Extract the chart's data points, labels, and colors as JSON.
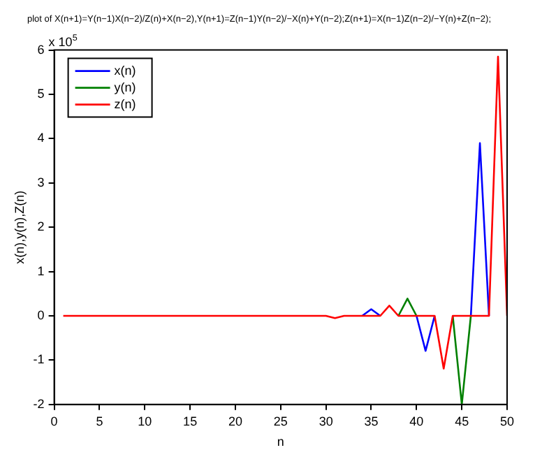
{
  "chart_data": {
    "type": "line",
    "title": "plot of X(n+1)=Y(n−1)X(n−2)/Z(n)+X(n−2),Y(n+1)=Z(n−1)Y(n−2)/−X(n)+Y(n−2);Z(n+1)=X(n−1)Z(n−2)/−Y(n)+Z(n−2);",
    "xlabel": "n",
    "ylabel": "x(n),y(n),Z(n)",
    "annotations": [
      "x 10$^{5}$"
    ],
    "x": [
      1,
      2,
      3,
      4,
      5,
      6,
      7,
      8,
      9,
      10,
      11,
      12,
      13,
      14,
      15,
      16,
      17,
      18,
      19,
      20,
      21,
      22,
      23,
      24,
      25,
      26,
      27,
      28,
      29,
      30,
      31,
      32,
      33,
      34,
      35,
      36,
      37,
      38,
      39,
      40,
      41,
      42,
      43,
      44,
      45,
      46,
      47,
      48,
      49,
      50
    ],
    "series": [
      {
        "name": "x(n)",
        "color": "#0000ff",
        "values": [
          null,
          null,
          null,
          null,
          null,
          null,
          null,
          null,
          null,
          null,
          null,
          null,
          null,
          null,
          null,
          null,
          null,
          null,
          null,
          null,
          null,
          null,
          null,
          null,
          null,
          null,
          null,
          null,
          null,
          null,
          null,
          null,
          null,
          0,
          0.15,
          0,
          null,
          null,
          null,
          0,
          -0.79,
          0,
          null,
          null,
          null,
          0,
          3.9,
          0,
          null,
          null
        ]
      },
      {
        "name": "y(n)",
        "color": "#008000",
        "values": [
          null,
          null,
          null,
          null,
          null,
          null,
          null,
          null,
          null,
          null,
          null,
          null,
          null,
          null,
          null,
          null,
          null,
          null,
          null,
          null,
          null,
          null,
          null,
          null,
          null,
          null,
          null,
          null,
          null,
          null,
          null,
          null,
          null,
          null,
          null,
          null,
          null,
          0,
          0.39,
          0,
          null,
          null,
          null,
          0,
          -2,
          0,
          null,
          null,
          null,
          null
        ]
      },
      {
        "name": "z(n)",
        "color": "#ff0000",
        "values": [
          0,
          0,
          0,
          0,
          0,
          0,
          0,
          0,
          0,
          0,
          0,
          0,
          0,
          0,
          0,
          0,
          0,
          0,
          0,
          0,
          0,
          0,
          0,
          0,
          0,
          0,
          0,
          0,
          0,
          0,
          -0.05,
          0,
          0,
          0,
          0,
          0,
          0.23,
          0,
          0,
          0,
          0,
          0,
          -1.19,
          0,
          0,
          0,
          0,
          0,
          5.85,
          0
        ]
      }
    ],
    "xlim": [
      0,
      50
    ],
    "xticks": [
      0,
      5,
      10,
      15,
      20,
      25,
      30,
      35,
      40,
      45,
      50
    ],
    "ylim": [
      -2,
      6
    ],
    "yticks": [
      -2,
      -1,
      0,
      1,
      2,
      3,
      4,
      5,
      6
    ],
    "legend": "top left",
    "marker": "none",
    "line_style": "solid"
  }
}
